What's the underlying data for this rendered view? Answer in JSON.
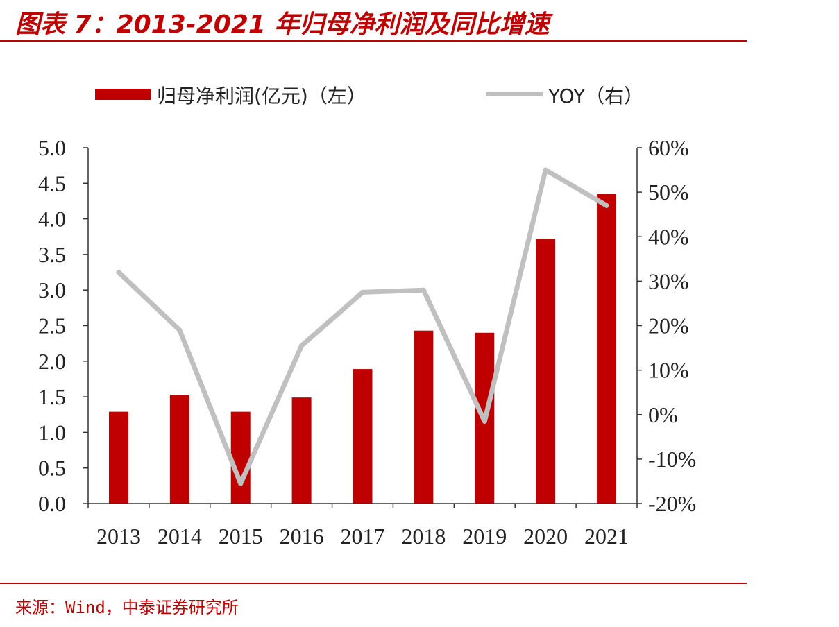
{
  "title": "图表 7：2013-2021 年归母净利润及同比增速",
  "source": "来源：Wind，中泰证券研究所",
  "colors": {
    "accent": "#c00000",
    "bar": "#c00000",
    "line": "#c0c0c0",
    "axis": "#333333"
  },
  "chart_data": {
    "type": "bar",
    "categories": [
      "2013",
      "2014",
      "2015",
      "2016",
      "2017",
      "2018",
      "2019",
      "2020",
      "2021"
    ],
    "series": [
      {
        "name": "归母净利润(亿元)（左）",
        "type": "bar",
        "axis": "left",
        "values": [
          1.29,
          1.53,
          1.29,
          1.49,
          1.89,
          2.43,
          2.4,
          3.72,
          4.35
        ]
      },
      {
        "name": "YOY（右）",
        "type": "line",
        "axis": "right",
        "values": [
          0.32,
          0.19,
          -0.155,
          0.155,
          0.275,
          0.28,
          -0.015,
          0.55,
          0.47
        ]
      }
    ],
    "y_left": {
      "ylim": [
        0,
        5
      ],
      "ticks": [
        "0.0",
        "0.5",
        "1.0",
        "1.5",
        "2.0",
        "2.5",
        "3.0",
        "3.5",
        "4.0",
        "4.5",
        "5.0"
      ]
    },
    "y_right": {
      "ylim": [
        -0.2,
        0.6
      ],
      "ticks": [
        "-20%",
        "-10%",
        "0%",
        "10%",
        "20%",
        "30%",
        "40%",
        "50%",
        "60%"
      ]
    },
    "legend": "top",
    "grid": false
  }
}
